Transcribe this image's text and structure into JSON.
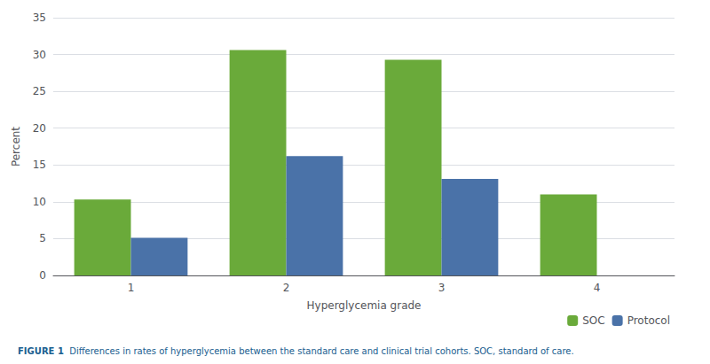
{
  "chart_data": {
    "type": "bar",
    "categories": [
      "1",
      "2",
      "3",
      "4"
    ],
    "series": [
      {
        "name": "SOC",
        "color": "#6aaa3a",
        "values": [
          10.3,
          30.6,
          29.3,
          11.0
        ]
      },
      {
        "name": "Protocol",
        "color": "#4a72a8",
        "values": [
          5.1,
          16.2,
          13.1,
          0
        ]
      }
    ],
    "x_label": "Hyperglycemia grade",
    "y_label": "Percent",
    "ylim": [
      0,
      35
    ],
    "yticks": [
      0,
      5,
      10,
      15,
      20,
      25,
      30,
      35
    ],
    "grid": true,
    "legend": "lower right",
    "annotations": [
      "FIGURE 1",
      "Differences in rates of hyperglycemia between the standard care and clinical trial cohorts. SOC, standard of care."
    ]
  }
}
